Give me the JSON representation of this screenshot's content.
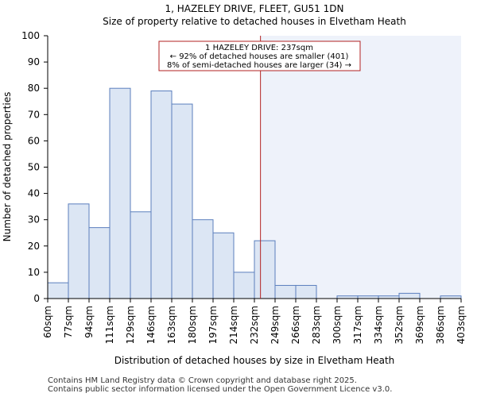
{
  "chart_data": {
    "type": "bar",
    "title": "1, HAZELEY DRIVE, FLEET, GU51 1DN",
    "subtitle": "Size of property relative to detached houses in Elvetham Heath",
    "xlabel": "Distribution of detached houses by size in Elvetham Heath",
    "ylabel": "Number of detached properties",
    "ylim": [
      0,
      100
    ],
    "yticks": [
      0,
      10,
      20,
      30,
      40,
      50,
      60,
      70,
      80,
      90,
      100
    ],
    "bin_edges": [
      60,
      77,
      94,
      111,
      129,
      146,
      163,
      180,
      197,
      214,
      232,
      249,
      266,
      283,
      300,
      317,
      334,
      352,
      369,
      386,
      403
    ],
    "tick_labels": [
      "60sqm",
      "77sqm",
      "94sqm",
      "111sqm",
      "129sqm",
      "146sqm",
      "163sqm",
      "180sqm",
      "197sqm",
      "214sqm",
      "232sqm",
      "249sqm",
      "266sqm",
      "283sqm",
      "300sqm",
      "317sqm",
      "334sqm",
      "352sqm",
      "369sqm",
      "386sqm",
      "403sqm"
    ],
    "values": [
      6,
      36,
      27,
      80,
      33,
      79,
      74,
      30,
      25,
      10,
      22,
      5,
      5,
      0,
      1,
      1,
      1,
      2,
      0,
      1
    ],
    "marker": {
      "value": 237,
      "label": "1 HAZELEY DRIVE: 237sqm",
      "color": "#b22222"
    },
    "annotation": [
      "1 HAZELEY DRIVE: 237sqm",
      "← 92% of detached houses are smaller (401)",
      "8% of semi-detached houses are larger (34) →"
    ],
    "colors": {
      "bar_fill": "#dce6f4",
      "bar_edge": "#5b7fbd",
      "shade": "#eef2fa",
      "marker": "#b22222"
    }
  },
  "footer": {
    "line1": "Contains HM Land Registry data © Crown copyright and database right 2025.",
    "line2": "Contains public sector information licensed under the Open Government Licence v3.0."
  }
}
